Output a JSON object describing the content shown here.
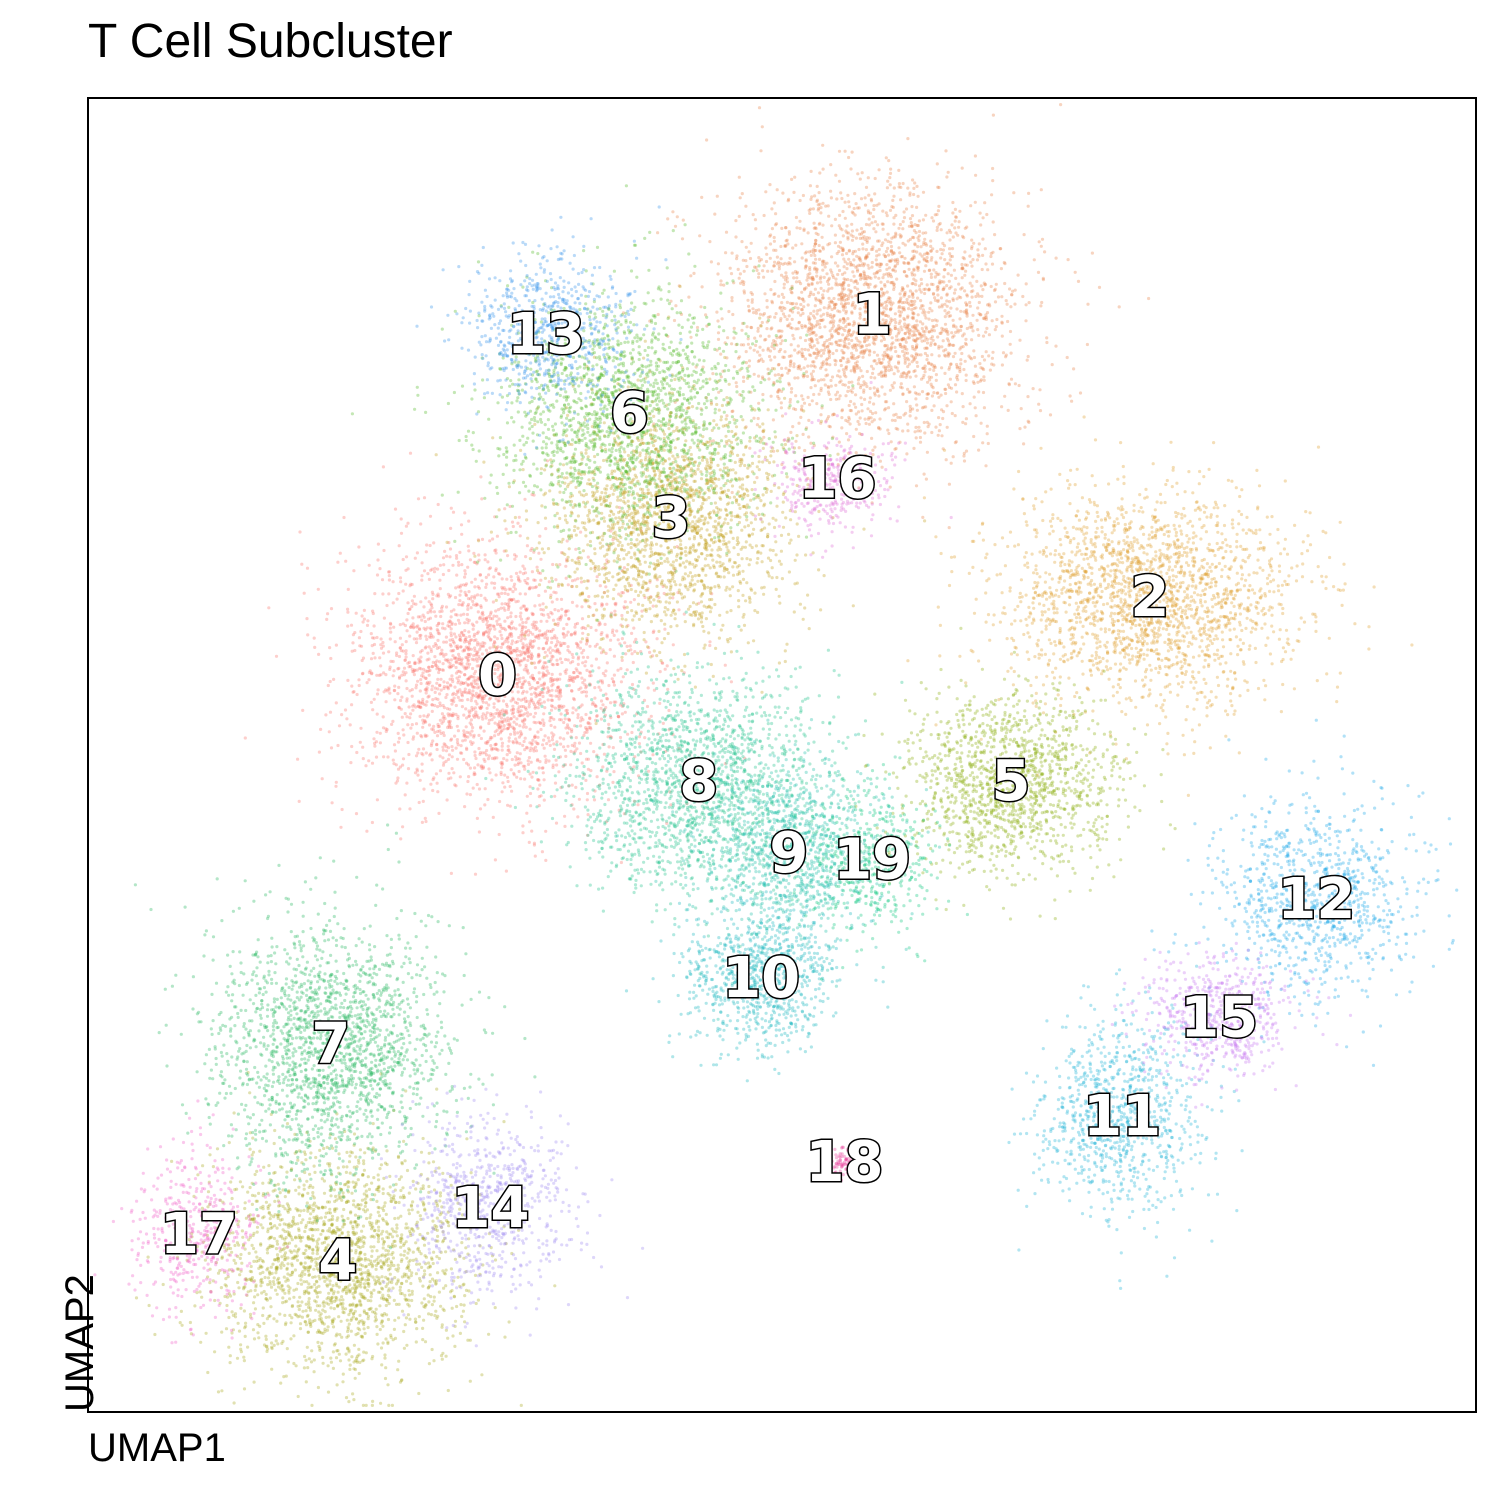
{
  "chart_data": {
    "type": "scatter",
    "title": "T Cell Subcluster",
    "xlabel": "UMAP1",
    "ylabel": "UMAP2",
    "xlim": [
      0,
      100
    ],
    "ylim": [
      0,
      100
    ],
    "grid": false,
    "legend": "none",
    "clusters": [
      {
        "label": "0",
        "x": 29.5,
        "y": 56.0,
        "sx": 7.0,
        "sy": 6.5,
        "n": 2600,
        "color": "#f8766d"
      },
      {
        "label": "1",
        "x": 56.5,
        "y": 83.5,
        "sx": 7.0,
        "sy": 6.5,
        "n": 2600,
        "color": "#e8854a"
      },
      {
        "label": "2",
        "x": 76.5,
        "y": 62.0,
        "sx": 7.0,
        "sy": 5.5,
        "n": 2100,
        "color": "#e0a030"
      },
      {
        "label": "3",
        "x": 42.0,
        "y": 68.0,
        "sx": 6.0,
        "sy": 6.0,
        "n": 1900,
        "color": "#c2a020"
      },
      {
        "label": "4",
        "x": 18.0,
        "y": 11.5,
        "sx": 6.0,
        "sy": 5.5,
        "n": 2000,
        "color": "#a8a820"
      },
      {
        "label": "5",
        "x": 66.5,
        "y": 48.0,
        "sx": 5.0,
        "sy": 4.5,
        "n": 1400,
        "color": "#8cb010"
      },
      {
        "label": "6",
        "x": 39.0,
        "y": 76.0,
        "sx": 6.5,
        "sy": 6.0,
        "n": 1900,
        "color": "#55bb2a"
      },
      {
        "label": "7",
        "x": 17.5,
        "y": 28.0,
        "sx": 5.5,
        "sy": 6.5,
        "n": 1900,
        "color": "#28b860"
      },
      {
        "label": "8",
        "x": 44.0,
        "y": 48.0,
        "sx": 6.0,
        "sy": 5.5,
        "n": 1700,
        "color": "#22c28c"
      },
      {
        "label": "9",
        "x": 50.5,
        "y": 42.5,
        "sx": 4.5,
        "sy": 4.5,
        "n": 1100,
        "color": "#20bfa8"
      },
      {
        "label": "10",
        "x": 48.5,
        "y": 33.0,
        "sx": 3.5,
        "sy": 3.5,
        "n": 900,
        "color": "#1cb8c0"
      },
      {
        "label": "11",
        "x": 74.5,
        "y": 22.5,
        "sx": 4.0,
        "sy": 5.0,
        "n": 950,
        "color": "#22b4d8"
      },
      {
        "label": "12",
        "x": 88.5,
        "y": 39.0,
        "sx": 5.0,
        "sy": 5.0,
        "n": 950,
        "color": "#20a8e8"
      },
      {
        "label": "13",
        "x": 33.0,
        "y": 82.0,
        "sx": 4.0,
        "sy": 4.0,
        "n": 700,
        "color": "#3a96ec"
      },
      {
        "label": "14",
        "x": 29.0,
        "y": 15.5,
        "sx": 4.0,
        "sy": 4.5,
        "n": 700,
        "color": "#a08cf0"
      },
      {
        "label": "15",
        "x": 81.5,
        "y": 30.0,
        "sx": 3.5,
        "sy": 3.0,
        "n": 600,
        "color": "#c87af0"
      },
      {
        "label": "16",
        "x": 54.0,
        "y": 71.0,
        "sx": 3.0,
        "sy": 2.5,
        "n": 350,
        "color": "#e070d8"
      },
      {
        "label": "17",
        "x": 8.0,
        "y": 13.5,
        "sx": 3.0,
        "sy": 4.0,
        "n": 450,
        "color": "#f060c8"
      },
      {
        "label": "18",
        "x": 54.5,
        "y": 19.0,
        "sx": 0.8,
        "sy": 0.8,
        "n": 70,
        "color": "#e8409a"
      },
      {
        "label": "19",
        "x": 56.5,
        "y": 42.0,
        "sx": 3.0,
        "sy": 3.5,
        "n": 450,
        "color": "#10c880"
      }
    ]
  }
}
